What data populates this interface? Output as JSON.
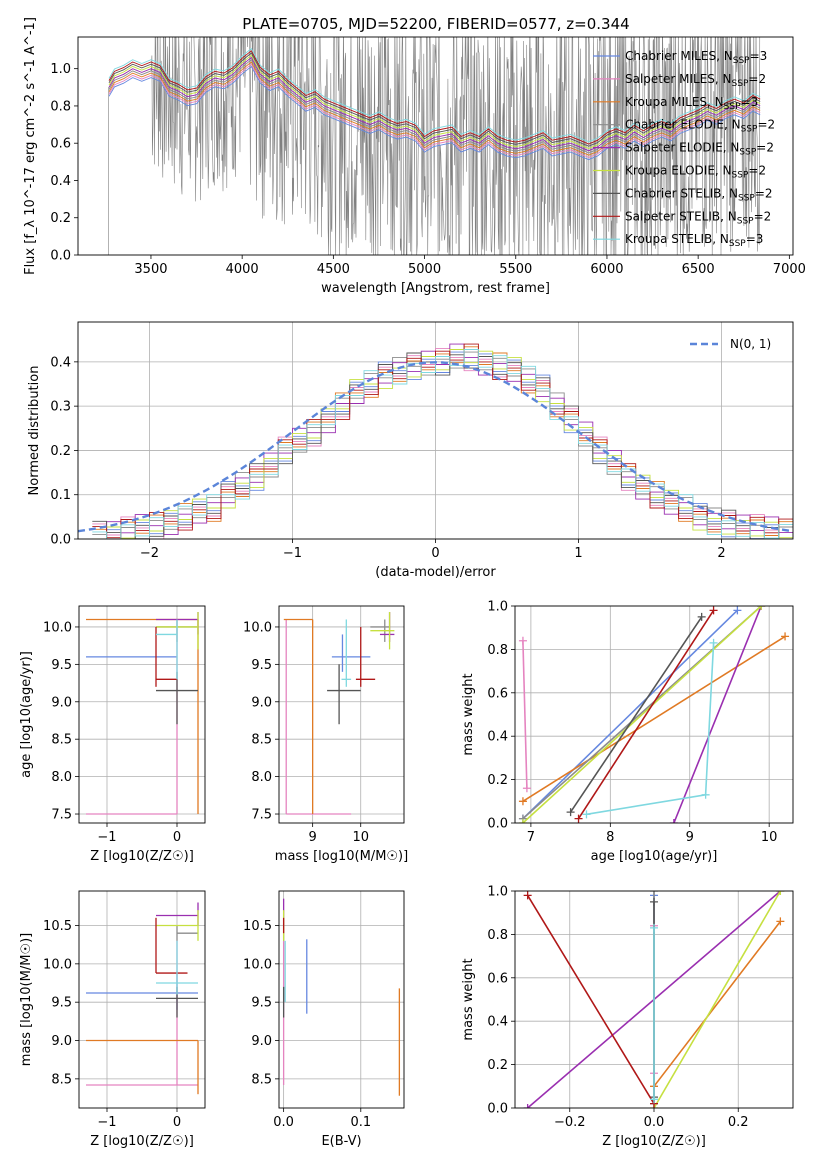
{
  "figure_title": "PLATE=0705, MJD=52200, FIBERID=0577, z=0.344",
  "series": [
    {
      "name": "Chabrier MILES, N",
      "sub": "SSP",
      "n": "=3",
      "color": "#6688e0",
      "style": "solid"
    },
    {
      "name": "Salpeter MILES, N",
      "sub": "SSP",
      "n": "=2",
      "color": "#e584c0",
      "style": "solid"
    },
    {
      "name": "Kroupa MILES, N",
      "sub": "SSP",
      "n": "=3",
      "color": "#e07a24",
      "style": "solid"
    },
    {
      "name": "Chabrier ELODIE, N",
      "sub": "SSP",
      "n": "=2",
      "color": "#8c8c8c",
      "style": "solid"
    },
    {
      "name": "Salpeter ELODIE, N",
      "sub": "SSP",
      "n": "=2",
      "color": "#9a2fb0",
      "style": "solid"
    },
    {
      "name": "Kroupa ELODIE, N",
      "sub": "SSP",
      "n": "=2",
      "color": "#c6e040",
      "style": "solid"
    },
    {
      "name": "Chabrier STELIB, N",
      "sub": "SSP",
      "n": "=2",
      "color": "#555555",
      "style": "solid"
    },
    {
      "name": "Salpeter STELIB, N",
      "sub": "SSP",
      "n": "=2",
      "color": "#b01818",
      "style": "solid"
    },
    {
      "name": "Kroupa STELIB, N",
      "sub": "SSP",
      "n": "=3",
      "color": "#7fd8e0",
      "style": "solid"
    }
  ],
  "chart_data": [
    {
      "id": "spectrum",
      "type": "line",
      "xlabel": "wavelength [Angstrom, rest frame]",
      "ylabel": "Flux [f_λ 10^-17 erg cm^-2 s^-1 A^-1]",
      "xlim": [
        3100,
        7020
      ],
      "ylim": [
        0,
        1.17
      ],
      "xticks": [
        3500,
        4000,
        4500,
        5000,
        5500,
        6000,
        6500,
        7000
      ],
      "yticks": [
        0.0,
        0.2,
        0.4,
        0.6,
        0.8,
        1.0
      ],
      "data_x": [
        3270,
        3300,
        3350,
        3400,
        3450,
        3500,
        3550,
        3600,
        3650,
        3700,
        3750,
        3800,
        3850,
        3900,
        3950,
        4000,
        4050,
        4100,
        4150,
        4200,
        4250,
        4300,
        4350,
        4400,
        4450,
        4500,
        4550,
        4600,
        4650,
        4700,
        4750,
        4800,
        4850,
        4900,
        4950,
        5000,
        5050,
        5100,
        5150,
        5200,
        5250,
        5300,
        5350,
        5400,
        5450,
        5500,
        5550,
        5600,
        5650,
        5700,
        5750,
        5800,
        5850,
        5900,
        5950,
        6000,
        6050,
        6100,
        6150,
        6200,
        6250,
        6300,
        6350,
        6400,
        6450,
        6500,
        6550,
        6600,
        6650,
        6700,
        6750,
        6800,
        6840
      ],
      "data_y": [
        0.9,
        0.95,
        0.97,
        1.0,
        0.98,
        1.0,
        0.98,
        0.9,
        0.88,
        0.85,
        0.86,
        0.92,
        0.95,
        0.94,
        0.97,
        1.02,
        1.06,
        0.97,
        0.93,
        0.95,
        0.9,
        0.86,
        0.82,
        0.84,
        0.8,
        0.78,
        0.76,
        0.74,
        0.72,
        0.7,
        0.72,
        0.69,
        0.67,
        0.68,
        0.66,
        0.6,
        0.63,
        0.64,
        0.65,
        0.6,
        0.62,
        0.6,
        0.64,
        0.6,
        0.58,
        0.57,
        0.58,
        0.6,
        0.62,
        0.58,
        0.59,
        0.6,
        0.58,
        0.56,
        0.58,
        0.62,
        0.64,
        0.62,
        0.66,
        0.63,
        0.66,
        0.68,
        0.66,
        0.7,
        0.72,
        0.74,
        0.77,
        0.75,
        0.78,
        0.8,
        0.78,
        0.82,
        0.8
      ]
    },
    {
      "id": "residuals",
      "type": "line",
      "xlabel": "(data-model)/error",
      "ylabel": "Normed distribution",
      "xlim": [
        -2.5,
        2.5
      ],
      "ylim": [
        0,
        0.49
      ],
      "xticks": [
        -2,
        -1,
        0,
        1,
        2
      ],
      "yticks": [
        0.0,
        0.1,
        0.2,
        0.3,
        0.4
      ],
      "legend": "N(0, 1)",
      "legend_position": "top-right",
      "bin_width": 0.1,
      "bins_start": -2.4,
      "hist": [
        0.01,
        0.015,
        0.02,
        0.025,
        0.03,
        0.04,
        0.05,
        0.06,
        0.07,
        0.1,
        0.12,
        0.14,
        0.17,
        0.2,
        0.22,
        0.24,
        0.27,
        0.3,
        0.33,
        0.35,
        0.37,
        0.38,
        0.39,
        0.4,
        0.4,
        0.41,
        0.41,
        0.4,
        0.39,
        0.38,
        0.36,
        0.34,
        0.3,
        0.27,
        0.24,
        0.2,
        0.17,
        0.14,
        0.12,
        0.1,
        0.08,
        0.07,
        0.05,
        0.04,
        0.035,
        0.03,
        0.025,
        0.02,
        0.015
      ]
    },
    {
      "id": "age_vs_Z",
      "type": "scatter",
      "xlabel": "Z [log10(Z/Z☉)]",
      "ylabel": "age [log10(age/yr)]",
      "xlim": [
        -1.4,
        0.4
      ],
      "ylim": [
        7.38,
        10.28
      ],
      "xticks": [
        -1,
        0
      ],
      "yticks": [
        7.5,
        8.0,
        8.5,
        9.0,
        9.5,
        10.0
      ],
      "points": [
        {
          "s": 0,
          "x": 0.0,
          "y": 9.6,
          "xl": -1.3,
          "xh": 0.0,
          "yl": 9.6,
          "yh": 9.6
        },
        {
          "s": 1,
          "x": 0.0,
          "y": 7.5,
          "xl": -1.3,
          "xh": 0.0,
          "yl": 7.5,
          "yh": 10.1
        },
        {
          "s": 2,
          "x": 0.3,
          "y": 10.1,
          "xl": -1.3,
          "xh": 0.3,
          "yl": 7.5,
          "yh": 10.1
        },
        {
          "s": 3,
          "x": 0.0,
          "y": 10.0,
          "xl": -0.3,
          "xh": 0.3,
          "yl": 9.8,
          "yh": 10.1
        },
        {
          "s": 4,
          "x": 0.3,
          "y": 10.1,
          "xl": -0.3,
          "xh": 0.3,
          "yl": 9.9,
          "yh": 10.2
        },
        {
          "s": 5,
          "x": 0.3,
          "y": 10.0,
          "xl": -0.3,
          "xh": 0.3,
          "yl": 9.7,
          "yh": 10.2
        },
        {
          "s": 6,
          "x": 0.0,
          "y": 9.15,
          "xl": -0.3,
          "xh": 0.3,
          "yl": 8.7,
          "yh": 9.4
        },
        {
          "s": 7,
          "x": -0.3,
          "y": 9.3,
          "xl": -0.3,
          "xh": 0.0,
          "yl": 9.2,
          "yh": 10.0
        },
        {
          "s": 8,
          "x": 0.0,
          "y": 9.9,
          "xl": -0.3,
          "xh": 0.0,
          "yl": 9.3,
          "yh": 10.1
        }
      ]
    },
    {
      "id": "age_vs_mass",
      "type": "scatter",
      "xlabel": "mass [log10(M/M☉)]",
      "ylabel": "",
      "xlim": [
        8.3,
        10.9
      ],
      "ylim": [
        7.38,
        10.28
      ],
      "xticks": [
        9,
        10
      ],
      "yticks": [
        7.5,
        8.0,
        8.5,
        9.0,
        9.5,
        10.0
      ],
      "points": [
        {
          "s": 0,
          "x": 9.62,
          "y": 9.6,
          "xl": 9.4,
          "xh": 10.2,
          "yl": 9.4,
          "yh": 9.9
        },
        {
          "s": 1,
          "x": 8.45,
          "y": 7.5,
          "xl": 8.45,
          "xh": 9.8,
          "yl": 7.5,
          "yh": 10.1
        },
        {
          "s": 2,
          "x": 9.0,
          "y": 10.1,
          "xl": 8.4,
          "xh": 9.0,
          "yl": 7.5,
          "yh": 10.1
        },
        {
          "s": 3,
          "x": 10.5,
          "y": 10.0,
          "xl": 10.2,
          "xh": 10.6,
          "yl": 9.8,
          "yh": 10.1
        },
        {
          "s": 4,
          "x": 10.6,
          "y": 9.9,
          "xl": 10.4,
          "xh": 10.7,
          "yl": 9.8,
          "yh": 10.2
        },
        {
          "s": 5,
          "x": 10.6,
          "y": 9.95,
          "xl": 10.2,
          "xh": 10.7,
          "yl": 9.7,
          "yh": 10.2
        },
        {
          "s": 6,
          "x": 9.55,
          "y": 9.15,
          "xl": 9.3,
          "xh": 10.0,
          "yl": 8.7,
          "yh": 9.5
        },
        {
          "s": 7,
          "x": 10.0,
          "y": 9.3,
          "xl": 9.9,
          "xh": 10.3,
          "yl": 9.2,
          "yh": 10.0
        },
        {
          "s": 8,
          "x": 9.7,
          "y": 9.3,
          "xl": 9.6,
          "xh": 9.8,
          "yl": 9.2,
          "yh": 10.1
        }
      ]
    },
    {
      "id": "massweight_vs_age",
      "type": "line",
      "xlabel": "age [log10(age/yr)]",
      "ylabel": "mass weight",
      "xlim": [
        6.8,
        10.3
      ],
      "ylim": [
        0,
        1.0
      ],
      "xticks": [
        7,
        8,
        9,
        10
      ],
      "yticks": [
        0.0,
        0.2,
        0.4,
        0.6,
        0.8,
        1.0
      ],
      "lines": [
        {
          "s": 0,
          "x": [
            6.9,
            9.6
          ],
          "y": [
            0.02,
            0.98
          ]
        },
        {
          "s": 1,
          "x": [
            6.9,
            6.95
          ],
          "y": [
            0.84,
            0.16
          ]
        },
        {
          "s": 2,
          "x": [
            6.9,
            10.2
          ],
          "y": [
            0.1,
            0.86
          ]
        },
        {
          "s": 3,
          "x": [
            6.9,
            9.9
          ],
          "y": [
            0.02,
            1.0
          ]
        },
        {
          "s": 4,
          "x": [
            8.8,
            9.9
          ],
          "y": [
            0.0,
            1.0
          ]
        },
        {
          "s": 5,
          "x": [
            6.9,
            9.9
          ],
          "y": [
            0.0,
            1.0
          ]
        },
        {
          "s": 6,
          "x": [
            7.5,
            9.15
          ],
          "y": [
            0.05,
            0.95
          ]
        },
        {
          "s": 7,
          "x": [
            7.6,
            9.3
          ],
          "y": [
            0.02,
            0.98
          ]
        },
        {
          "s": 8,
          "x": [
            7.7,
            9.2,
            9.3
          ],
          "y": [
            0.04,
            0.13,
            0.83
          ]
        }
      ]
    },
    {
      "id": "mass_vs_Z",
      "type": "scatter",
      "xlabel": "Z [log10(Z/Z☉)]",
      "ylabel": "mass [log10(M/M☉)]",
      "xlim": [
        -1.4,
        0.4
      ],
      "ylim": [
        8.12,
        10.95
      ],
      "xticks": [
        -1,
        0
      ],
      "yticks": [
        8.5,
        9.0,
        9.5,
        10.0,
        10.5
      ],
      "points": [
        {
          "s": 0,
          "x": 0.0,
          "y": 9.62,
          "xl": -1.3,
          "xh": 0.3,
          "yl": 9.4,
          "yh": 9.9
        },
        {
          "s": 1,
          "x": 0.0,
          "y": 8.42,
          "xl": -1.3,
          "xh": 0.3,
          "yl": 8.42,
          "yh": 10.3
        },
        {
          "s": 2,
          "x": 0.3,
          "y": 9.0,
          "xl": -1.3,
          "xh": 0.3,
          "yl": 8.3,
          "yh": 9.0
        },
        {
          "s": 3,
          "x": 0.0,
          "y": 10.4,
          "xl": 0.0,
          "xh": 0.3,
          "yl": 10.3,
          "yh": 10.5
        },
        {
          "s": 4,
          "x": 0.3,
          "y": 10.63,
          "xl": -0.3,
          "xh": 0.3,
          "yl": 10.5,
          "yh": 10.8
        },
        {
          "s": 5,
          "x": 0.3,
          "y": 10.5,
          "xl": -0.3,
          "xh": 0.3,
          "yl": 10.3,
          "yh": 10.7
        },
        {
          "s": 6,
          "x": 0.0,
          "y": 9.55,
          "xl": -0.3,
          "xh": 0.3,
          "yl": 9.3,
          "yh": 9.7
        },
        {
          "s": 7,
          "x": -0.3,
          "y": 9.88,
          "xl": -0.3,
          "xh": 0.15,
          "yl": 9.88,
          "yh": 10.6
        },
        {
          "s": 8,
          "x": 0.0,
          "y": 9.75,
          "xl": -0.3,
          "xh": 0.3,
          "yl": 9.6,
          "yh": 10.3
        }
      ]
    },
    {
      "id": "mass_vs_ebv",
      "type": "scatter",
      "xlabel": "E(B-V)",
      "ylabel": "",
      "xlim": [
        -0.006,
        0.156
      ],
      "ylim": [
        8.12,
        10.95
      ],
      "xticks": [
        0.0,
        0.1
      ],
      "yticks": [
        8.5,
        9.0,
        9.5,
        10.0,
        10.5
      ],
      "vlines": [
        {
          "s": 0,
          "x": 0.03,
          "yl": 9.35,
          "yh": 10.32
        },
        {
          "s": 1,
          "x": 0.0,
          "yl": 8.42,
          "yh": 10.3
        },
        {
          "s": 2,
          "x": 0.15,
          "yl": 8.28,
          "yh": 9.68
        },
        {
          "s": 3,
          "x": 0.0,
          "yl": 10.3,
          "yh": 10.5
        },
        {
          "s": 4,
          "x": 0.0,
          "yl": 10.5,
          "yh": 10.85
        },
        {
          "s": 5,
          "x": 0.0,
          "yl": 10.3,
          "yh": 10.7
        },
        {
          "s": 6,
          "x": 0.0,
          "yl": 9.3,
          "yh": 9.7
        },
        {
          "s": 7,
          "x": 0.0,
          "yl": 10.4,
          "yh": 10.6
        },
        {
          "s": 8,
          "x": 0.002,
          "yl": 9.5,
          "yh": 10.3
        }
      ]
    },
    {
      "id": "massweight_vs_Z",
      "type": "line",
      "xlabel": "Z [log10(Z/Z☉)]",
      "ylabel": "mass weight",
      "xlim": [
        -0.33,
        0.33
      ],
      "ylim": [
        0,
        1.0
      ],
      "xticks": [
        -0.2,
        0.0,
        0.2
      ],
      "yticks": [
        0.0,
        0.2,
        0.4,
        0.6,
        0.8,
        1.0
      ],
      "lines": [
        {
          "s": 0,
          "x": [
            0.0,
            0.0
          ],
          "y": [
            0.02,
            0.98
          ]
        },
        {
          "s": 1,
          "x": [
            0.0,
            0.0
          ],
          "y": [
            0.16,
            0.84
          ]
        },
        {
          "s": 2,
          "x": [
            0.0,
            0.3
          ],
          "y": [
            0.1,
            0.86
          ]
        },
        {
          "s": 3,
          "x": [
            0.0,
            0.0
          ],
          "y": [
            0.02,
            1.0
          ]
        },
        {
          "s": 4,
          "x": [
            -0.3,
            0.3
          ],
          "y": [
            0.0,
            1.0
          ]
        },
        {
          "s": 5,
          "x": [
            0.0,
            0.3
          ],
          "y": [
            0.0,
            1.0
          ]
        },
        {
          "s": 6,
          "x": [
            0.0,
            0.0
          ],
          "y": [
            0.05,
            0.95
          ]
        },
        {
          "s": 7,
          "x": [
            -0.3,
            0.0
          ],
          "y": [
            0.98,
            0.02
          ]
        },
        {
          "s": 8,
          "x": [
            0.0,
            0.0
          ],
          "y": [
            0.04,
            0.83
          ]
        }
      ]
    }
  ]
}
